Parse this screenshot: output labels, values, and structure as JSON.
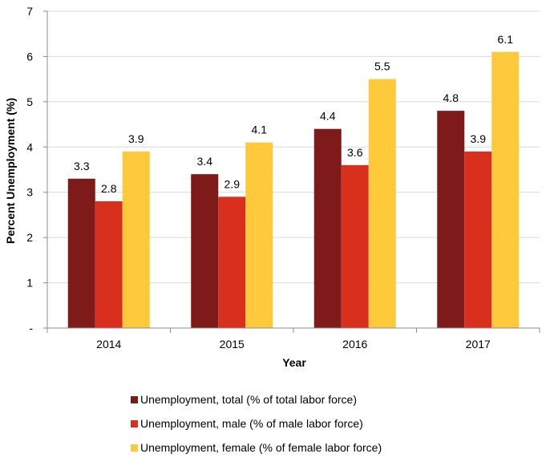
{
  "chart_data": {
    "type": "bar",
    "title": "",
    "xlabel": "Year",
    "ylabel": "Percent Unemployment (%)",
    "categories": [
      "2014",
      "2015",
      "2016",
      "2017"
    ],
    "ylim": [
      0,
      7
    ],
    "yticks": [
      {
        "value": 0,
        "label": "-"
      },
      {
        "value": 1,
        "label": "1"
      },
      {
        "value": 2,
        "label": "2"
      },
      {
        "value": 3,
        "label": "3"
      },
      {
        "value": 4,
        "label": "4"
      },
      {
        "value": 5,
        "label": "5"
      },
      {
        "value": 6,
        "label": "6"
      },
      {
        "value": 7,
        "label": "7"
      }
    ],
    "grid": true,
    "legend_position": "bottom",
    "series": [
      {
        "name": "Unemployment, total (% of total labor force)",
        "color": "#7f1a1a",
        "values": [
          3.3,
          3.4,
          4.4,
          4.8
        ],
        "labels": [
          "3.3",
          "3.4",
          "4.4",
          "4.8"
        ]
      },
      {
        "name": "Unemployment, male (% of male labor force)",
        "color": "#d9301e",
        "values": [
          2.8,
          2.9,
          3.6,
          3.9
        ],
        "labels": [
          "2.8",
          "2.9",
          "3.6",
          "3.9"
        ]
      },
      {
        "name": "Unemployment, female (% of female labor force)",
        "color": "#ffc93c",
        "values": [
          3.9,
          4.1,
          5.5,
          6.1
        ],
        "labels": [
          "3.9",
          "4.1",
          "5.5",
          "6.1"
        ]
      }
    ],
    "gridline_color": "#d9d9d9",
    "axis_color": "#8c8c8c"
  }
}
